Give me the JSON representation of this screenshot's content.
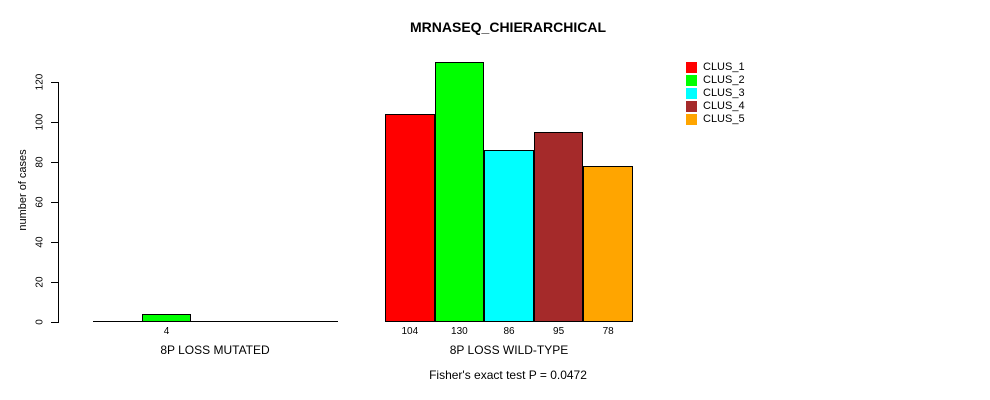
{
  "title": "MRNASEQ_CHIERARCHICAL",
  "footer": "Fisher's exact test P = 0.0472",
  "chart_data": {
    "type": "bar",
    "title": "MRNASEQ_CHIERARCHICAL",
    "xlabel": "",
    "ylabel": "number of cases",
    "ylim": [
      0,
      130
    ],
    "yticks": [
      0,
      20,
      40,
      60,
      80,
      100,
      120
    ],
    "grid": false,
    "legend_position": "top-right",
    "categories": [
      "8P LOSS MUTATED",
      "8P LOSS WILD-TYPE"
    ],
    "series": [
      {
        "name": "CLUS_1",
        "color": "#FF0000",
        "values": [
          0,
          104
        ]
      },
      {
        "name": "CLUS_2",
        "color": "#00FF00",
        "values": [
          4,
          130
        ]
      },
      {
        "name": "CLUS_3",
        "color": "#00FFFF",
        "values": [
          0,
          86
        ]
      },
      {
        "name": "CLUS_4",
        "color": "#A52A2A",
        "values": [
          0,
          95
        ]
      },
      {
        "name": "CLUS_5",
        "color": "#FFA500",
        "values": [
          0,
          78
        ]
      }
    ],
    "bar_value_labels": {
      "8P LOSS MUTATED": [
        4
      ],
      "8P LOSS WILD-TYPE": [
        104,
        130,
        86,
        95,
        78
      ]
    },
    "annotation": "Fisher's exact test P = 0.0472"
  }
}
